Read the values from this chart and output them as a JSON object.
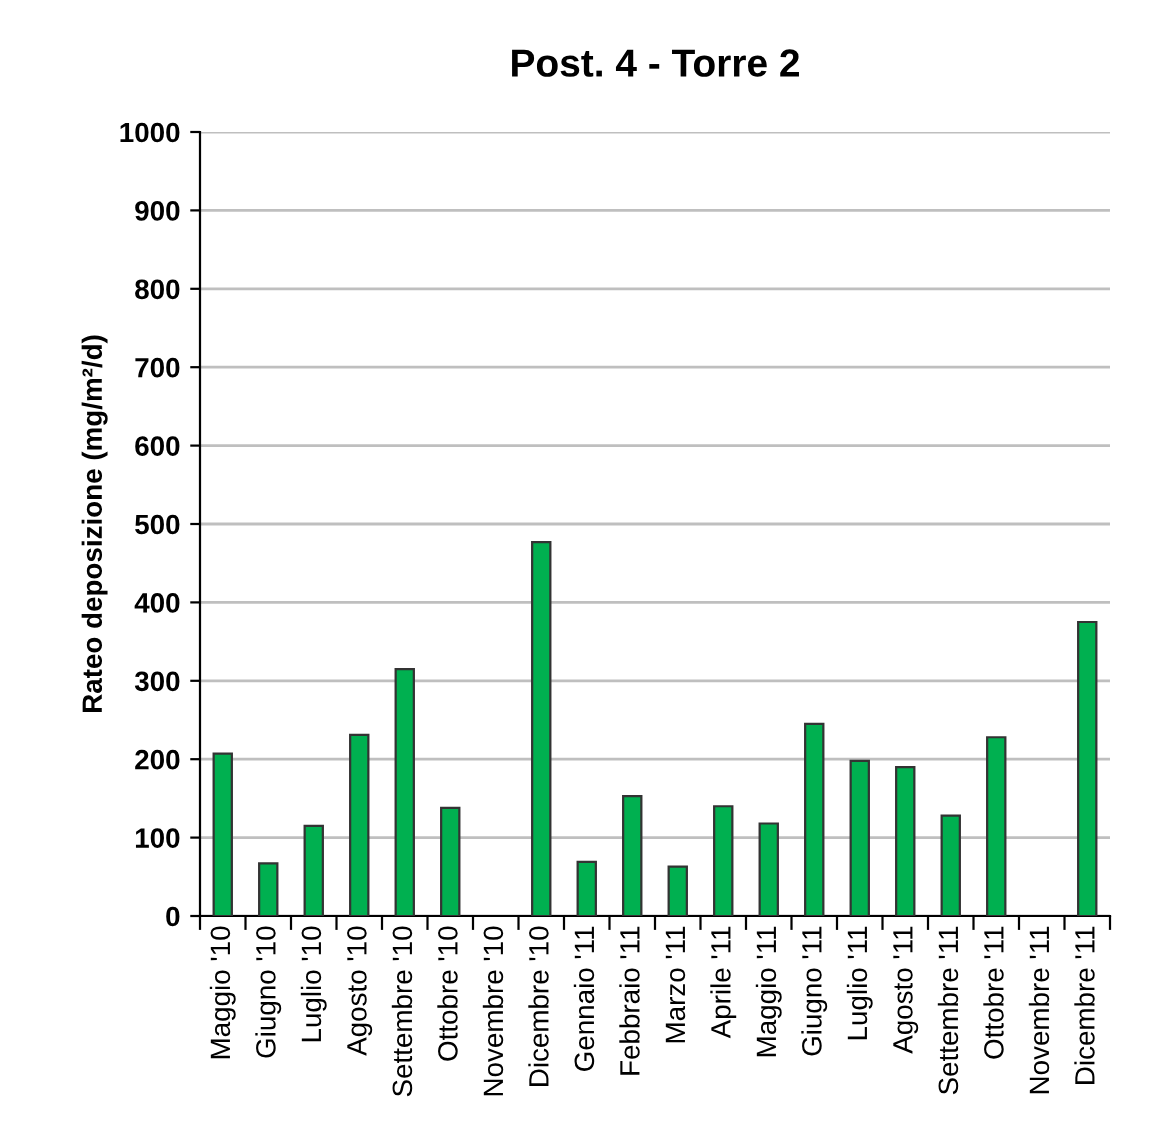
{
  "chart_data": {
    "type": "bar",
    "title": "Post. 4 - Torre 2",
    "ylabel": "Rateo deposizione (mg/m²/d)",
    "categories": [
      "Maggio '10",
      "Giugno '10",
      "Luglio '10",
      "Agosto '10",
      "Settembre '10",
      "Ottobre '10",
      "Novembre '10",
      "Dicembre '10",
      "Gennaio '11",
      "Febbraio '11",
      "Marzo '11",
      "Aprile '11",
      "Maggio '11",
      "Giugno '11",
      "Luglio '11",
      "Agosto '11",
      "Settembre '11",
      "Ottobre '11",
      "Novembre '11",
      "Dicembre '11"
    ],
    "values": [
      207,
      67,
      115,
      231,
      315,
      138,
      null,
      477,
      69,
      153,
      63,
      140,
      118,
      245,
      198,
      190,
      128,
      228,
      null,
      375
    ],
    "color": "#00b050",
    "ylim": [
      0,
      1000
    ],
    "yticks": [
      0,
      100,
      200,
      300,
      400,
      500,
      600,
      700,
      800,
      900,
      1000
    ],
    "grid": "y",
    "legend": false
  }
}
